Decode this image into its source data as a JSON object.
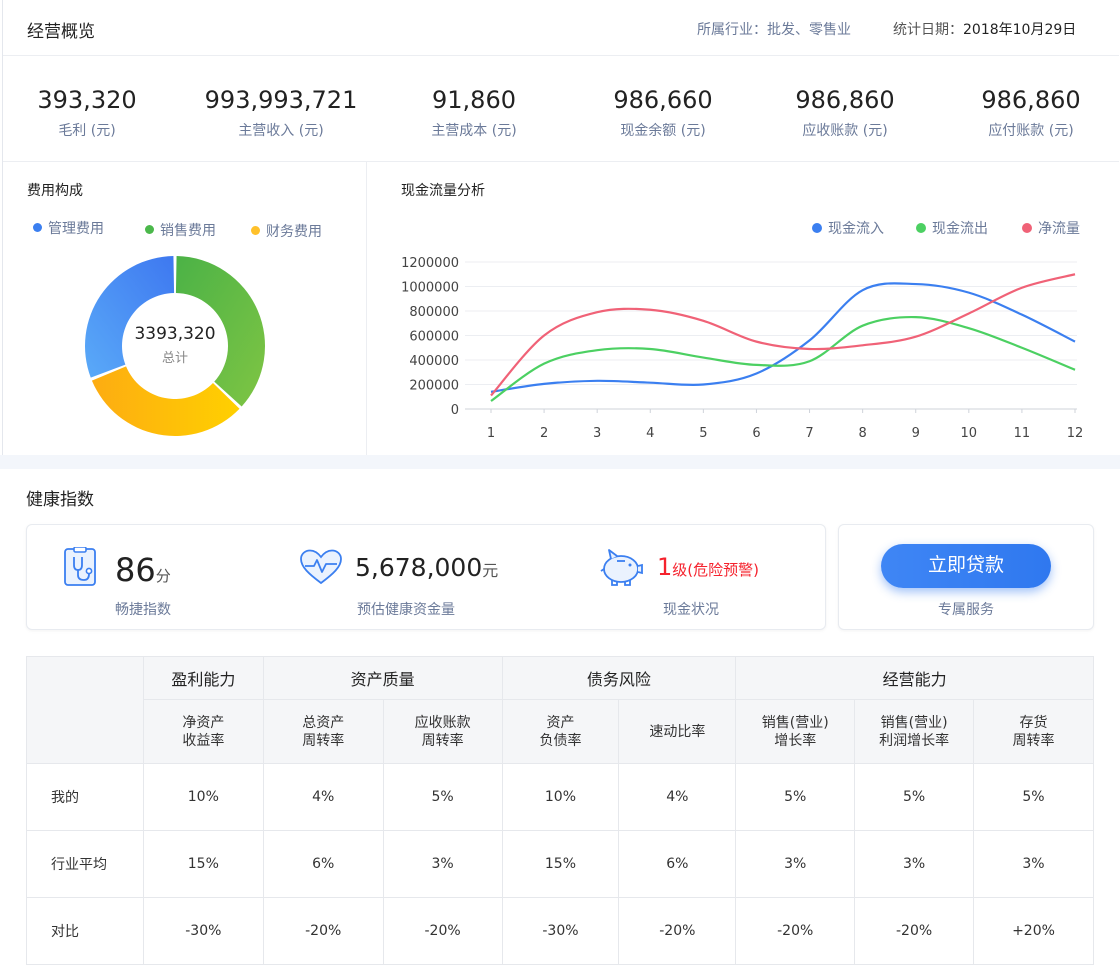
{
  "header": {
    "title": "经营概览",
    "industry": "所属行业：批发、零售业",
    "date_label": "统计日期：",
    "date_value": "2018年10月29日"
  },
  "kpis": [
    {
      "value": "393,320",
      "label": "毛利 (元)"
    },
    {
      "value": "993,993,721",
      "label": "主营收入 (元)"
    },
    {
      "value": "91,860",
      "label": "主营成本 (元)"
    },
    {
      "value": "986,660",
      "label": "现金余额 (元)"
    },
    {
      "value": "986,860",
      "label": "应收账款 (元)"
    },
    {
      "value": "986,860",
      "label": "应付账款 (元)"
    }
  ],
  "cost": {
    "title": "费用构成",
    "legend": [
      "管理费用",
      "销售费用",
      "财务费用"
    ],
    "total_value": "3393,320",
    "total_label": "总计",
    "colors": {
      "management": "#4a8af4",
      "sales": "#5bb94a",
      "finance": "#f9bb1a"
    },
    "shares": {
      "management": 0.31,
      "sales": 0.37,
      "finance": 0.32
    }
  },
  "chart_data": {
    "type": "line",
    "title": "现金流量分析",
    "x": [
      1,
      2,
      3,
      4,
      5,
      6,
      7,
      8,
      9,
      10,
      11,
      12
    ],
    "ylim": [
      0,
      1200000
    ],
    "yticks": [
      "1200000",
      "1000000",
      "800000",
      "600000",
      "400000",
      "200000",
      "0"
    ],
    "legend_position": "top-right",
    "series": [
      {
        "name": "现金流入",
        "color": "#3b7ff0",
        "values": [
          140000,
          205000,
          230000,
          215000,
          200000,
          290000,
          560000,
          970000,
          1020000,
          950000,
          770000,
          550000
        ]
      },
      {
        "name": "现金流出",
        "color": "#4cd062",
        "values": [
          65000,
          370000,
          480000,
          490000,
          420000,
          360000,
          390000,
          680000,
          750000,
          660000,
          500000,
          320000
        ]
      },
      {
        "name": "净流量",
        "color": "#f06277",
        "values": [
          110000,
          600000,
          790000,
          810000,
          720000,
          550000,
          490000,
          520000,
          590000,
          780000,
          990000,
          1100000
        ]
      }
    ]
  },
  "health": {
    "title": "健康指数",
    "score_value": "86",
    "score_unit": "分",
    "score_label": "畅捷指数",
    "fund_value": "5,678,000",
    "fund_unit": "元",
    "fund_label": "预估健康资金量",
    "cash_level": "1",
    "cash_level_desc": "级(危险预警)",
    "cash_label": "现金状况",
    "loan_button": "立即贷款",
    "loan_sub": "专属服务"
  },
  "table": {
    "groups": [
      "盈利能力",
      "资产质量",
      "债务风险",
      "经营能力"
    ],
    "columns": [
      [
        "净资产",
        "收益率"
      ],
      [
        "总资产",
        "周转率"
      ],
      [
        "应收账款",
        "周转率"
      ],
      [
        "资产",
        "负债率"
      ],
      [
        "速动比率",
        ""
      ],
      [
        "销售(营业)",
        "增长率"
      ],
      [
        "销售(营业)",
        "利润增长率"
      ],
      [
        "存货",
        "周转率"
      ]
    ],
    "rows": [
      {
        "label": "我的",
        "values": [
          "10%",
          "4%",
          "5%",
          "10%",
          "4%",
          "5%",
          "5%",
          "5%"
        ]
      },
      {
        "label": "行业平均",
        "values": [
          "15%",
          "6%",
          "3%",
          "15%",
          "6%",
          "3%",
          "3%",
          "3%"
        ]
      },
      {
        "label": "对比",
        "values": [
          "-30%",
          "-20%",
          "-20%",
          "-30%",
          "-20%",
          "-20%",
          "-20%",
          "+20%"
        ]
      }
    ]
  }
}
